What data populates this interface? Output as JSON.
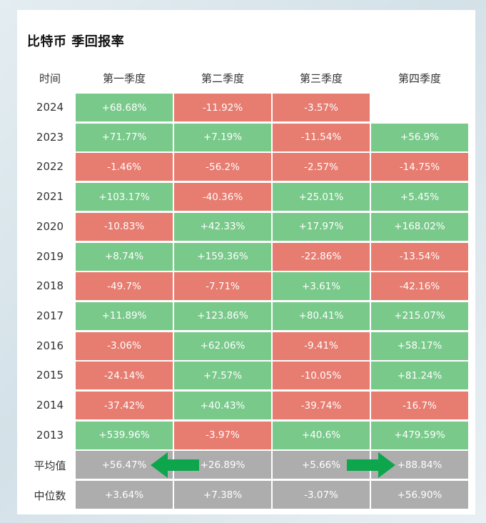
{
  "chart_data": {
    "type": "table",
    "title": "比特币 季回报率",
    "row_header_label": "时间",
    "columns": [
      "第一季度",
      "第二季度",
      "第三季度",
      "第四季度"
    ],
    "rows": [
      {
        "label": "2024",
        "values": [
          "+68.68%",
          "-11.92%",
          "-3.57%",
          null
        ]
      },
      {
        "label": "2023",
        "values": [
          "+71.77%",
          "+7.19%",
          "-11.54%",
          "+56.9%"
        ]
      },
      {
        "label": "2022",
        "values": [
          "-1.46%",
          "-56.2%",
          "-2.57%",
          "-14.75%"
        ]
      },
      {
        "label": "2021",
        "values": [
          "+103.17%",
          "-40.36%",
          "+25.01%",
          "+5.45%"
        ]
      },
      {
        "label": "2020",
        "values": [
          "-10.83%",
          "+42.33%",
          "+17.97%",
          "+168.02%"
        ]
      },
      {
        "label": "2019",
        "values": [
          "+8.74%",
          "+159.36%",
          "-22.86%",
          "-13.54%"
        ]
      },
      {
        "label": "2018",
        "values": [
          "-49.7%",
          "-7.71%",
          "+3.61%",
          "-42.16%"
        ]
      },
      {
        "label": "2017",
        "values": [
          "+11.89%",
          "+123.86%",
          "+80.41%",
          "+215.07%"
        ]
      },
      {
        "label": "2016",
        "values": [
          "-3.06%",
          "+62.06%",
          "-9.41%",
          "+58.17%"
        ]
      },
      {
        "label": "2015",
        "values": [
          "-24.14%",
          "+7.57%",
          "-10.05%",
          "+81.24%"
        ]
      },
      {
        "label": "2014",
        "values": [
          "-37.42%",
          "+40.43%",
          "-39.74%",
          "-16.7%"
        ]
      },
      {
        "label": "2013",
        "values": [
          "+539.96%",
          "-3.97%",
          "+40.6%",
          "+479.59%"
        ]
      }
    ],
    "summary_rows": [
      {
        "label": "平均值",
        "values": [
          "+56.47%",
          "+26.89%",
          "+5.66%",
          "+88.84%"
        ]
      },
      {
        "label": "中位数",
        "values": [
          "+3.64%",
          "+7.38%",
          "-3.07%",
          "+56.90%"
        ]
      }
    ],
    "colors": {
      "positive": "#79c98b",
      "negative": "#e77c70",
      "summary": "#adadad",
      "arrow": "#0ea64d"
    },
    "annotations": [
      {
        "type": "arrow",
        "direction": "left",
        "row": "平均值",
        "points_to": "第一季度"
      },
      {
        "type": "arrow",
        "direction": "right",
        "row": "平均值",
        "points_to": "第四季度"
      }
    ]
  }
}
